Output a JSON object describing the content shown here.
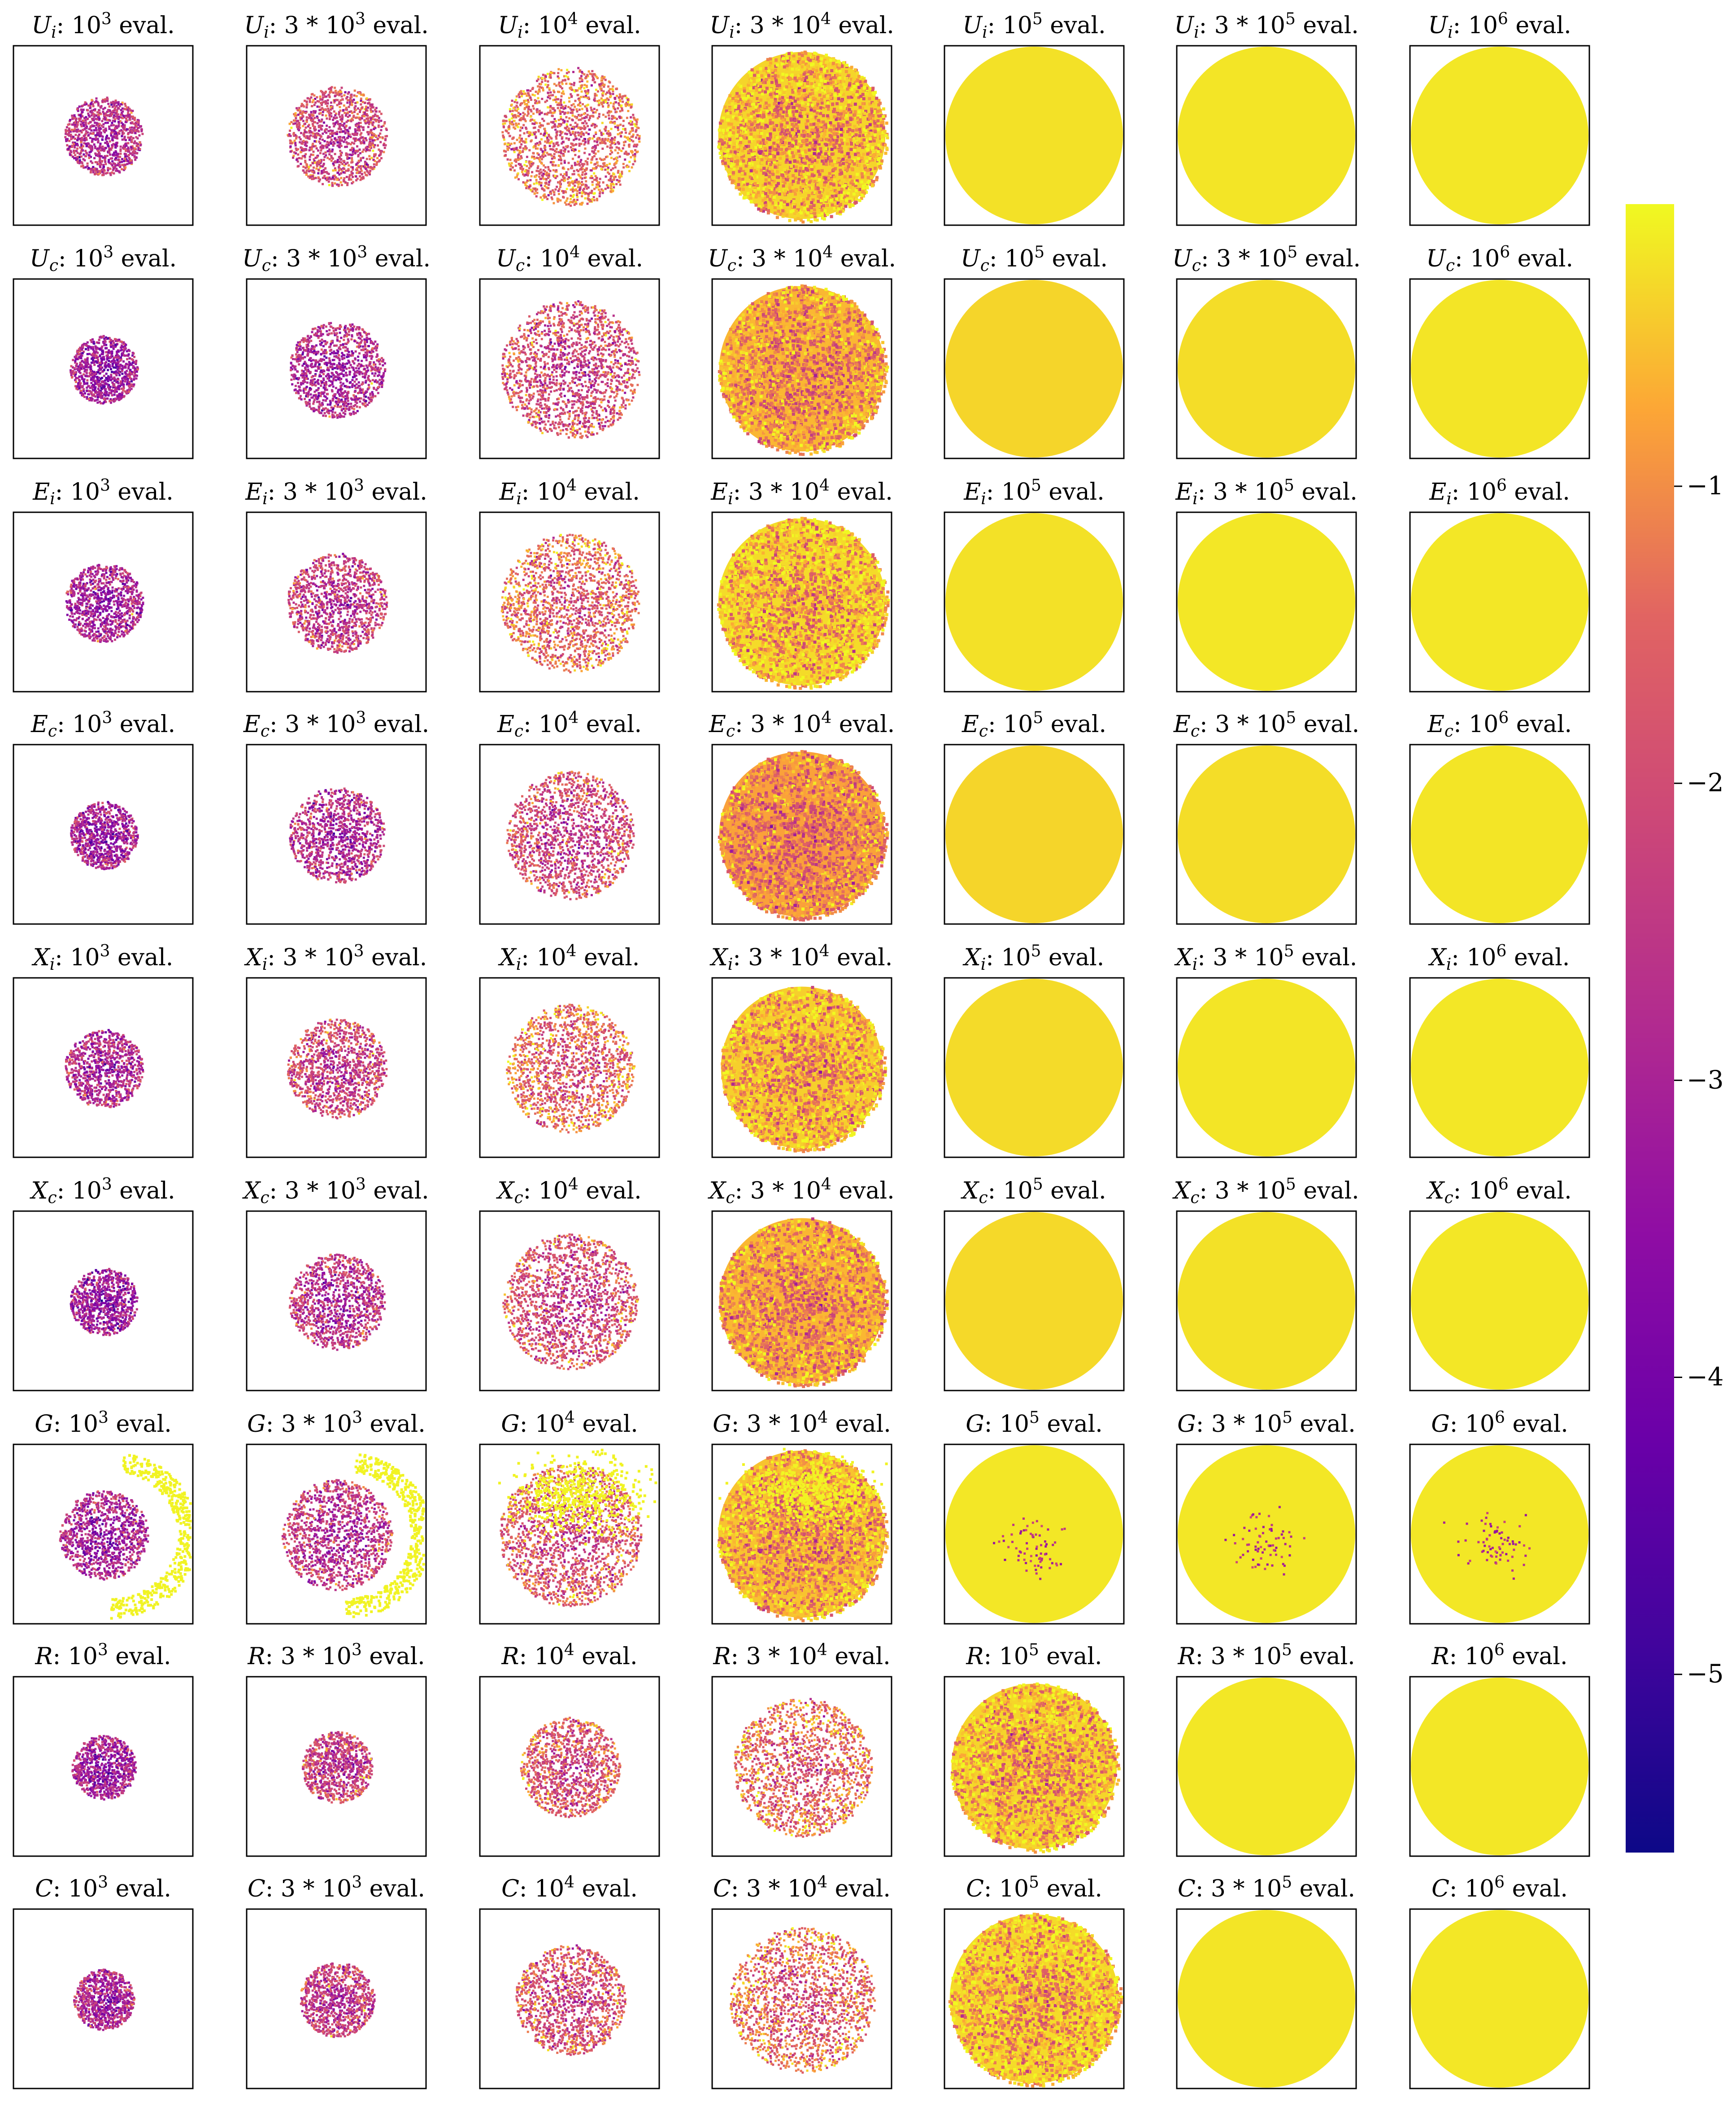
{
  "chart_data": {
    "type": "heatmap",
    "colormap": "plasma",
    "colorbar": {
      "ticks": [
        -1,
        -2,
        -3,
        -4,
        -5
      ],
      "tick_labels": [
        "−1",
        "−2",
        "−3",
        "−4",
        "−5"
      ],
      "vmax": -0.05,
      "vmin": -5.6
    },
    "eval_labels": [
      {
        "mult": "",
        "exp": "3"
      },
      {
        "mult": "3 * ",
        "exp": "3"
      },
      {
        "mult": "",
        "exp": "4"
      },
      {
        "mult": "3 * ",
        "exp": "4"
      },
      {
        "mult": "",
        "exp": "5"
      },
      {
        "mult": "3 * ",
        "exp": "5"
      },
      {
        "mult": "",
        "exp": "6"
      }
    ],
    "eval_suffix": " eval.",
    "methods": [
      {
        "name": "U",
        "sub": "i",
        "coverage": [
          0.44,
          0.56,
          0.78,
          0.96,
          1.0,
          1.0,
          1.0
        ],
        "mean": [
          -2.4,
          -1.8,
          -1.2,
          -0.55,
          -0.25,
          -0.22,
          -0.2
        ]
      },
      {
        "name": "U",
        "sub": "c",
        "coverage": [
          0.38,
          0.54,
          0.78,
          0.95,
          1.0,
          1.0,
          1.0
        ],
        "mean": [
          -2.9,
          -2.5,
          -1.7,
          -0.8,
          -0.35,
          -0.28,
          -0.22
        ]
      },
      {
        "name": "E",
        "sub": "i",
        "coverage": [
          0.44,
          0.56,
          0.78,
          0.96,
          1.0,
          1.0,
          1.0
        ],
        "mean": [
          -2.7,
          -2.1,
          -1.2,
          -0.5,
          -0.25,
          -0.2,
          -0.2
        ]
      },
      {
        "name": "E",
        "sub": "c",
        "coverage": [
          0.38,
          0.54,
          0.72,
          0.95,
          1.0,
          1.0,
          1.0
        ],
        "mean": [
          -2.8,
          -2.4,
          -1.8,
          -1.0,
          -0.35,
          -0.28,
          -0.22
        ]
      },
      {
        "name": "X",
        "sub": "i",
        "coverage": [
          0.44,
          0.56,
          0.72,
          0.93,
          1.0,
          1.0,
          1.0
        ],
        "mean": [
          -2.5,
          -1.9,
          -1.2,
          -0.6,
          -0.3,
          -0.22,
          -0.2
        ]
      },
      {
        "name": "X",
        "sub": "c",
        "coverage": [
          0.38,
          0.54,
          0.76,
          0.95,
          1.0,
          1.0,
          1.0
        ],
        "mean": [
          -2.9,
          -2.3,
          -1.7,
          -0.8,
          -0.32,
          -0.25,
          -0.2
        ]
      },
      {
        "name": "G",
        "sub": "",
        "coverage": [
          0.5,
          0.62,
          0.8,
          0.96,
          1.0,
          1.0,
          1.0
        ],
        "mean": [
          -2.7,
          -2.2,
          -1.5,
          -0.7,
          -0.2,
          -0.2,
          -0.2
        ]
      },
      {
        "name": "R",
        "sub": "",
        "coverage": [
          0.36,
          0.4,
          0.56,
          0.78,
          0.95,
          1.0,
          1.0
        ],
        "mean": [
          -2.8,
          -2.0,
          -1.5,
          -1.2,
          -0.55,
          -0.2,
          -0.2
        ]
      },
      {
        "name": "C",
        "sub": "",
        "coverage": [
          0.34,
          0.42,
          0.62,
          0.82,
          0.97,
          1.0,
          1.0
        ],
        "mean": [
          -2.6,
          -2.1,
          -1.6,
          -1.2,
          -0.5,
          -0.22,
          -0.2
        ]
      }
    ]
  }
}
